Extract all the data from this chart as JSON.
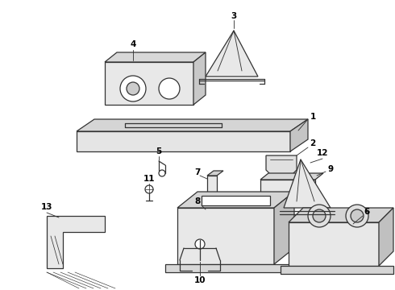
{
  "background_color": "#ffffff",
  "line_color": "#333333",
  "label_color": "#000000",
  "fig_width": 4.9,
  "fig_height": 3.6,
  "dpi": 100,
  "label_fontsize": 7.5
}
